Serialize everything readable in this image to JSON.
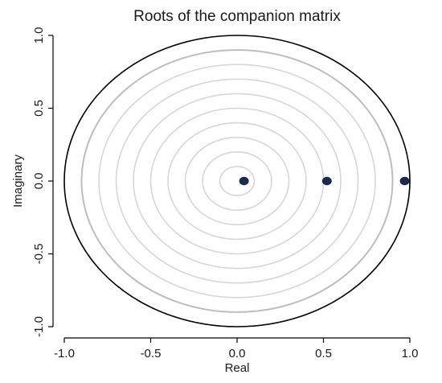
{
  "chart_data": {
    "type": "scatter",
    "title": "Roots of the companion matrix",
    "xlabel": "Real",
    "ylabel": "Imaginary",
    "xlim": [
      -1.0,
      1.0
    ],
    "ylim": [
      -1.0,
      1.0
    ],
    "x_ticks": [
      -1.0,
      -0.5,
      0.0,
      0.5,
      1.0
    ],
    "y_ticks": [
      -1.0,
      -0.5,
      0.0,
      0.5,
      1.0
    ],
    "x_tick_labels": [
      "-1.0",
      "-0.5",
      "0.0",
      "0.5",
      "1.0"
    ],
    "y_tick_labels": [
      "-1.0",
      "-0.5",
      "0.0",
      "0.5",
      "1.0"
    ],
    "grid": false,
    "points": [
      {
        "x": 0.04,
        "y": 0.0
      },
      {
        "x": 0.52,
        "y": 0.0
      },
      {
        "x": 0.97,
        "y": 0.0
      }
    ],
    "unit_circle_radius": 1.0,
    "reference_circle_radii": [
      0.1,
      0.2,
      0.3,
      0.4,
      0.5,
      0.6,
      0.7,
      0.8,
      0.9
    ],
    "colors": {
      "points": "#1a2a4a",
      "unit_circle": "#000000",
      "reference_circles": "#d6d6d6",
      "outer_reference_circle": "#bdbdbd",
      "axes": "#000000"
    }
  }
}
